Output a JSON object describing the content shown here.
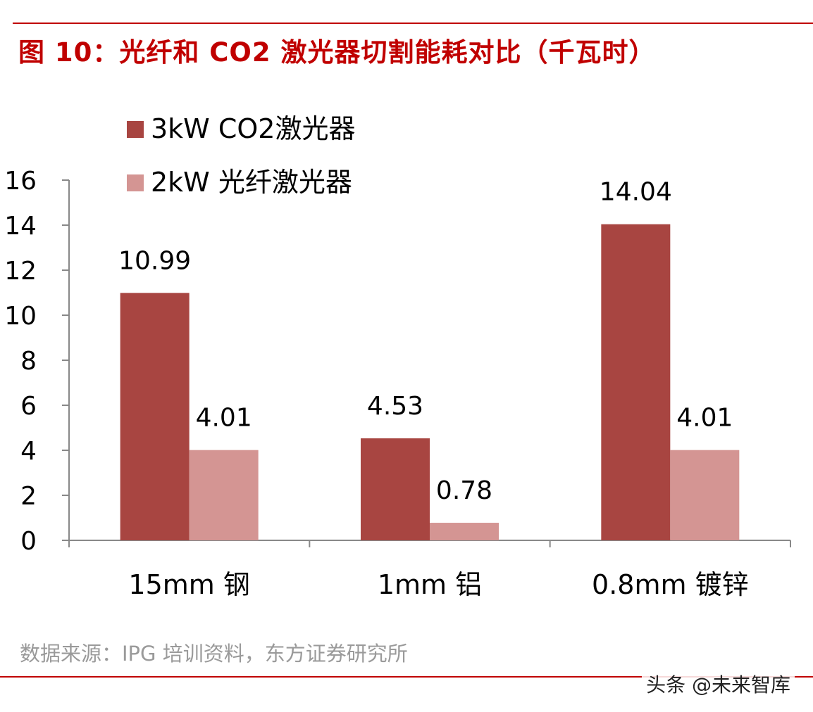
{
  "header": {
    "title": "图 10：光纤和 CO2 激光器切割能耗对比（千瓦时）"
  },
  "chart_data": {
    "type": "bar",
    "title": "图 10：光纤和 CO2 激光器切割能耗对比（千瓦时）",
    "categories": [
      "15mm 钢",
      "1mm 铝",
      "0.8mm 镀锌"
    ],
    "series": [
      {
        "name": "3kW CO2激光器",
        "values": [
          10.99,
          4.53,
          14.04
        ],
        "color": "#a84541"
      },
      {
        "name": "2kW 光纤激光器",
        "values": [
          4.01,
          0.78,
          4.01
        ],
        "color": "#d49593"
      }
    ],
    "data_labels": [
      [
        "10.99",
        "4.53",
        "14.04"
      ],
      [
        "4.01",
        "0.78",
        "4.01"
      ]
    ],
    "y_ticks": [
      "0",
      "2",
      "4",
      "6",
      "8",
      "10",
      "12",
      "14",
      "16"
    ],
    "ylim": [
      0,
      16
    ],
    "grid": false,
    "legend_position": "top-left"
  },
  "footer": {
    "source": "数据来源：IPG 培训资料，东方证券研究所",
    "watermark": "头条 @未来智库"
  }
}
